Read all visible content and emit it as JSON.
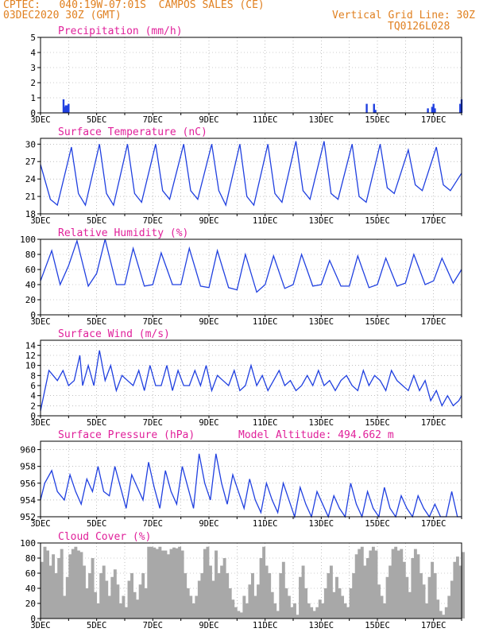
{
  "header": {
    "line1": "CPTEC:   040:19W-07:01S  CAMPOS SALES (CE)",
    "line2": "03DEC2020 30Z (GMT)",
    "grid_note": "Vertical Grid Line: 30Z",
    "code": "TQ0126L028"
  },
  "colors": {
    "header": "#e08020",
    "title": "#e0209a",
    "series": "#2040e0",
    "cloud": "#a8a8a8",
    "frame": "#000000"
  },
  "x_labels": [
    "3DEC",
    "5DEC",
    "7DEC",
    "9DEC",
    "11DEC",
    "13DEC",
    "15DEC",
    "17DEC"
  ],
  "chart_data": [
    {
      "type": "bar",
      "title": "Precipitation (mm/h)",
      "ylim": [
        0,
        5
      ],
      "yticks": [
        0,
        1,
        2,
        3,
        4,
        5
      ],
      "x": [
        0.82,
        0.86,
        0.9,
        0.95,
        1.0,
        11.62,
        11.88,
        11.93,
        13.8,
        13.95,
        14.0,
        14.05,
        14.95,
        15.0
      ],
      "values": [
        0.9,
        0.4,
        0.5,
        0.5,
        0.6,
        0.6,
        0.6,
        0.2,
        0.3,
        0.4,
        0.6,
        0.3,
        0.6,
        0.9
      ]
    },
    {
      "type": "line",
      "title": "Surface Temperature (nC)",
      "ylim": [
        18,
        31
      ],
      "yticks": [
        18,
        21,
        24,
        27,
        30
      ],
      "x": [
        0,
        0.35,
        0.6,
        1.1,
        1.35,
        1.6,
        2.1,
        2.35,
        2.6,
        3.1,
        3.35,
        3.6,
        4.1,
        4.35,
        4.6,
        5.1,
        5.35,
        5.6,
        6.1,
        6.35,
        6.6,
        7.1,
        7.35,
        7.6,
        8.1,
        8.35,
        8.6,
        9.1,
        9.35,
        9.6,
        10.1,
        10.35,
        10.6,
        11.1,
        11.35,
        11.6,
        12.1,
        12.35,
        12.6,
        13.1,
        13.35,
        13.6,
        14.1,
        14.35,
        14.6,
        15.0
      ],
      "values": [
        26.5,
        20.5,
        19.5,
        29.5,
        21.5,
        19.5,
        30.0,
        21.5,
        19.5,
        30.0,
        21.5,
        20.0,
        30.0,
        22.0,
        20.5,
        30.0,
        22.0,
        20.5,
        30.0,
        22.0,
        19.5,
        30.0,
        21.0,
        19.5,
        30.0,
        21.5,
        20.0,
        30.5,
        22.0,
        20.5,
        30.5,
        21.5,
        20.5,
        30.0,
        21.0,
        20.0,
        30.0,
        22.5,
        21.5,
        29.0,
        23.0,
        22.0,
        29.5,
        23.0,
        22.0,
        25.0
      ]
    },
    {
      "type": "line",
      "title": "Relative Humidity (%)",
      "ylim": [
        0,
        100
      ],
      "yticks": [
        0,
        20,
        40,
        60,
        80,
        100
      ],
      "x": [
        0,
        0.4,
        0.7,
        1.0,
        1.3,
        1.7,
        2.0,
        2.3,
        2.7,
        3.0,
        3.3,
        3.7,
        4.0,
        4.3,
        4.7,
        5.0,
        5.3,
        5.7,
        6.0,
        6.3,
        6.7,
        7.0,
        7.3,
        7.7,
        8.0,
        8.3,
        8.7,
        9.0,
        9.3,
        9.7,
        10.0,
        10.3,
        10.7,
        11.0,
        11.3,
        11.7,
        12.0,
        12.3,
        12.7,
        13.0,
        13.3,
        13.7,
        14.0,
        14.3,
        14.7,
        15.0
      ],
      "values": [
        45,
        85,
        40,
        65,
        98,
        38,
        55,
        100,
        40,
        40,
        88,
        38,
        40,
        82,
        40,
        40,
        88,
        38,
        36,
        85,
        36,
        33,
        80,
        30,
        40,
        78,
        35,
        40,
        80,
        38,
        40,
        72,
        38,
        38,
        78,
        36,
        40,
        75,
        38,
        42,
        80,
        40,
        45,
        75,
        42,
        60
      ]
    },
    {
      "type": "line",
      "title": "Surface Wind (m/s)",
      "ylim": [
        0,
        15
      ],
      "yticks": [
        0,
        2,
        4,
        6,
        8,
        10,
        12,
        14
      ],
      "x": [
        0,
        0.3,
        0.6,
        0.8,
        1.0,
        1.2,
        1.4,
        1.5,
        1.7,
        1.9,
        2.1,
        2.3,
        2.5,
        2.7,
        2.9,
        3.1,
        3.3,
        3.5,
        3.7,
        3.9,
        4.1,
        4.3,
        4.5,
        4.7,
        4.9,
        5.1,
        5.3,
        5.5,
        5.7,
        5.9,
        6.1,
        6.3,
        6.5,
        6.7,
        6.9,
        7.1,
        7.3,
        7.5,
        7.7,
        7.9,
        8.1,
        8.3,
        8.5,
        8.7,
        8.9,
        9.1,
        9.3,
        9.5,
        9.7,
        9.9,
        10.1,
        10.3,
        10.5,
        10.7,
        10.9,
        11.1,
        11.3,
        11.5,
        11.7,
        11.9,
        12.1,
        12.3,
        12.5,
        12.7,
        12.9,
        13.1,
        13.3,
        13.5,
        13.7,
        13.9,
        14.1,
        14.3,
        14.5,
        14.7,
        14.9,
        15.0
      ],
      "values": [
        1,
        9,
        7,
        9,
        6,
        7,
        12,
        6,
        10,
        6,
        13,
        7,
        10,
        5,
        8,
        7,
        6,
        9,
        5,
        10,
        6,
        6,
        10,
        5,
        9,
        6,
        6,
        9,
        6,
        10,
        5,
        8,
        7,
        6,
        9,
        5,
        6,
        10,
        6,
        8,
        5,
        7,
        9,
        6,
        7,
        5,
        6,
        8,
        6,
        9,
        6,
        7,
        5,
        7,
        8,
        6,
        5,
        9,
        6,
        8,
        7,
        5,
        9,
        7,
        6,
        5,
        8,
        5,
        7,
        3,
        5,
        2,
        4,
        2,
        3,
        4
      ]
    },
    {
      "type": "line",
      "title": "Surface Pressure (hPa)",
      "subtitle": "Model Altitude: 494.662 m",
      "ylim": [
        952,
        961
      ],
      "yticks": [
        952,
        954,
        956,
        958,
        960
      ],
      "x": [
        0,
        0.15,
        0.4,
        0.6,
        0.85,
        1.05,
        1.25,
        1.45,
        1.65,
        1.85,
        2.05,
        2.25,
        2.45,
        2.65,
        2.85,
        3.05,
        3.25,
        3.45,
        3.65,
        3.85,
        4.05,
        4.25,
        4.45,
        4.65,
        4.85,
        5.05,
        5.25,
        5.45,
        5.65,
        5.85,
        6.05,
        6.25,
        6.45,
        6.65,
        6.85,
        7.05,
        7.25,
        7.45,
        7.65,
        7.85,
        8.05,
        8.25,
        8.45,
        8.65,
        8.85,
        9.05,
        9.25,
        9.45,
        9.65,
        9.85,
        10.05,
        10.25,
        10.45,
        10.65,
        10.85,
        11.05,
        11.25,
        11.45,
        11.65,
        11.85,
        12.05,
        12.25,
        12.45,
        12.65,
        12.85,
        13.05,
        13.25,
        13.45,
        13.65,
        13.85,
        14.05,
        14.25,
        14.45,
        14.65,
        14.85,
        15.0
      ],
      "values": [
        954,
        956,
        957.5,
        955,
        954,
        957,
        955,
        953.5,
        956.5,
        955,
        958,
        955,
        954.5,
        958,
        955.5,
        953,
        957,
        955.5,
        954,
        958.5,
        955.5,
        953,
        957.5,
        955,
        953.5,
        958,
        955.5,
        953,
        959.5,
        956,
        954,
        959.5,
        956,
        953.5,
        957,
        955,
        953,
        956.5,
        954,
        952.5,
        956,
        954,
        952.5,
        956,
        954,
        952,
        955.5,
        953.5,
        952,
        955,
        953.5,
        952,
        954.5,
        953,
        952,
        956,
        953.5,
        952,
        955,
        953,
        952,
        955.5,
        953,
        952,
        954.5,
        953,
        952,
        954.5,
        953,
        952,
        953.5,
        952,
        952,
        955,
        952,
        952
      ]
    },
    {
      "type": "area",
      "title": "Cloud Cover (%)",
      "ylim": [
        0,
        100
      ],
      "yticks": [
        0,
        20,
        40,
        60,
        80,
        100
      ],
      "x": [
        0,
        0.1,
        0.2,
        0.3,
        0.4,
        0.5,
        0.6,
        0.7,
        0.8,
        0.9,
        1.0,
        1.1,
        1.2,
        1.3,
        1.4,
        1.5,
        1.6,
        1.7,
        1.8,
        1.9,
        2.0,
        2.1,
        2.2,
        2.3,
        2.4,
        2.5,
        2.6,
        2.7,
        2.8,
        2.9,
        3.0,
        3.1,
        3.2,
        3.3,
        3.4,
        3.5,
        3.6,
        3.7,
        3.8,
        3.9,
        4.0,
        4.1,
        4.2,
        4.3,
        4.4,
        4.5,
        4.6,
        4.7,
        4.8,
        4.9,
        5.0,
        5.1,
        5.2,
        5.3,
        5.4,
        5.5,
        5.6,
        5.7,
        5.8,
        5.9,
        6.0,
        6.1,
        6.2,
        6.3,
        6.4,
        6.5,
        6.6,
        6.7,
        6.8,
        6.9,
        7.0,
        7.1,
        7.2,
        7.3,
        7.4,
        7.5,
        7.6,
        7.7,
        7.8,
        7.9,
        8.0,
        8.1,
        8.2,
        8.3,
        8.4,
        8.5,
        8.6,
        8.7,
        8.8,
        8.9,
        9.0,
        9.1,
        9.2,
        9.3,
        9.4,
        9.5,
        9.6,
        9.7,
        9.8,
        9.9,
        10.0,
        10.1,
        10.2,
        10.3,
        10.4,
        10.5,
        10.6,
        10.7,
        10.8,
        10.9,
        11.0,
        11.1,
        11.2,
        11.3,
        11.4,
        11.5,
        11.6,
        11.7,
        11.8,
        11.9,
        12.0,
        12.1,
        12.2,
        12.3,
        12.4,
        12.5,
        12.6,
        12.7,
        12.8,
        12.9,
        13.0,
        13.1,
        13.2,
        13.3,
        13.4,
        13.5,
        13.6,
        13.7,
        13.8,
        13.9,
        14.0,
        14.1,
        14.2,
        14.3,
        14.4,
        14.5,
        14.6,
        14.7,
        14.8,
        14.9,
        15.0
      ],
      "values": [
        75,
        95,
        90,
        70,
        85,
        60,
        80,
        92,
        30,
        55,
        85,
        92,
        95,
        90,
        88,
        70,
        40,
        60,
        80,
        35,
        20,
        60,
        70,
        50,
        30,
        55,
        65,
        45,
        20,
        30,
        15,
        50,
        60,
        35,
        25,
        45,
        60,
        40,
        95,
        95,
        94,
        92,
        95,
        90,
        90,
        85,
        92,
        94,
        93,
        95,
        90,
        60,
        40,
        30,
        20,
        30,
        50,
        60,
        92,
        95,
        70,
        50,
        90,
        60,
        70,
        80,
        60,
        40,
        25,
        15,
        10,
        8,
        30,
        20,
        45,
        60,
        30,
        45,
        80,
        95,
        70,
        60,
        35,
        20,
        10,
        60,
        75,
        40,
        30,
        15,
        20,
        5,
        55,
        70,
        40,
        20,
        15,
        10,
        15,
        25,
        20,
        40,
        60,
        70,
        35,
        55,
        40,
        30,
        20,
        15,
        40,
        60,
        85,
        92,
        95,
        70,
        80,
        90,
        95,
        90,
        45,
        30,
        20,
        55,
        70,
        92,
        95,
        90,
        92,
        75,
        55,
        35,
        80,
        92,
        85,
        60,
        45,
        20,
        55,
        75,
        60,
        25,
        10,
        5,
        15,
        30,
        50,
        75,
        82,
        70,
        88
      ]
    }
  ]
}
